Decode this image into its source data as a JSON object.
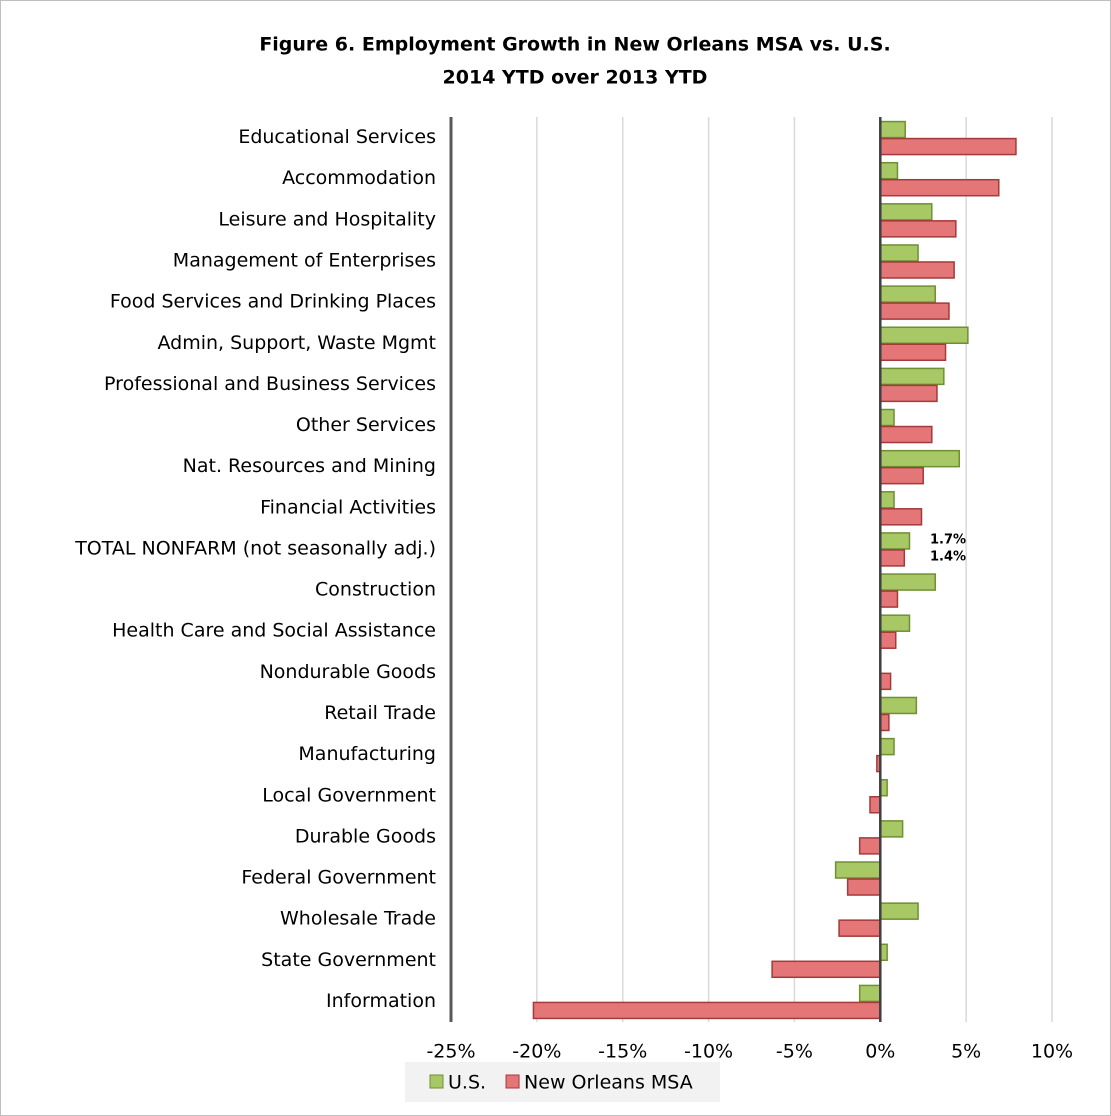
{
  "chart_data": {
    "type": "bar",
    "orientation": "horizontal",
    "title": "Figure 6. Employment Growth in New Orleans MSA vs. U.S.",
    "subtitle": "2014 YTD over 2013 YTD",
    "categories": [
      "Educational Services",
      "Accommodation",
      "Leisure and Hospitality",
      "Management of Enterprises",
      "Food Services and Drinking Places",
      "Admin, Support, Waste Mgmt",
      "Professional and Business Services",
      "Other Services",
      "Nat. Resources and Mining",
      "Financial Activities",
      "TOTAL NONFARM (not seasonally adj.)",
      "Construction",
      "Health Care and Social Assistance",
      "Nondurable Goods",
      "Retail Trade",
      "Manufacturing",
      "Local Government",
      "Durable Goods",
      "Federal Government",
      "Wholesale Trade",
      "State Government",
      "Information"
    ],
    "series": [
      {
        "name": "U.S.",
        "color": "#a8c866",
        "values": [
          1.45,
          1.0,
          3.0,
          2.2,
          3.2,
          5.1,
          3.7,
          0.8,
          4.6,
          0.8,
          1.7,
          3.2,
          1.7,
          0.0,
          2.1,
          0.8,
          0.4,
          1.3,
          -2.6,
          2.2,
          0.4,
          -1.2
        ],
        "value_labels": [
          null,
          null,
          null,
          null,
          null,
          null,
          null,
          null,
          null,
          null,
          "1.7%",
          null,
          null,
          null,
          null,
          null,
          null,
          null,
          null,
          null,
          null,
          null
        ]
      },
      {
        "name": "New Orleans MSA",
        "color": "#e47677",
        "values": [
          7.9,
          6.9,
          4.4,
          4.3,
          4.0,
          3.8,
          3.3,
          3.0,
          2.5,
          2.4,
          1.4,
          1.0,
          0.9,
          0.6,
          0.5,
          -0.2,
          -0.6,
          -1.2,
          -1.9,
          -2.4,
          -6.3,
          -20.2
        ],
        "value_labels": [
          null,
          null,
          null,
          null,
          null,
          null,
          null,
          null,
          null,
          null,
          "1.4%",
          null,
          null,
          null,
          null,
          null,
          null,
          null,
          null,
          null,
          null,
          null
        ]
      }
    ],
    "xlim": [
      -25,
      10
    ],
    "xticks": [
      {
        "value": -25,
        "label": "-25%"
      },
      {
        "value": -20,
        "label": "-20%"
      },
      {
        "value": -15,
        "label": "-15%"
      },
      {
        "value": -10,
        "label": "-10%"
      },
      {
        "value": -5,
        "label": "-5%"
      },
      {
        "value": 0,
        "label": "0%"
      },
      {
        "value": 5,
        "label": "5%"
      },
      {
        "value": 10,
        "label": "10%"
      }
    ],
    "grid": true,
    "legend": "bottom"
  }
}
